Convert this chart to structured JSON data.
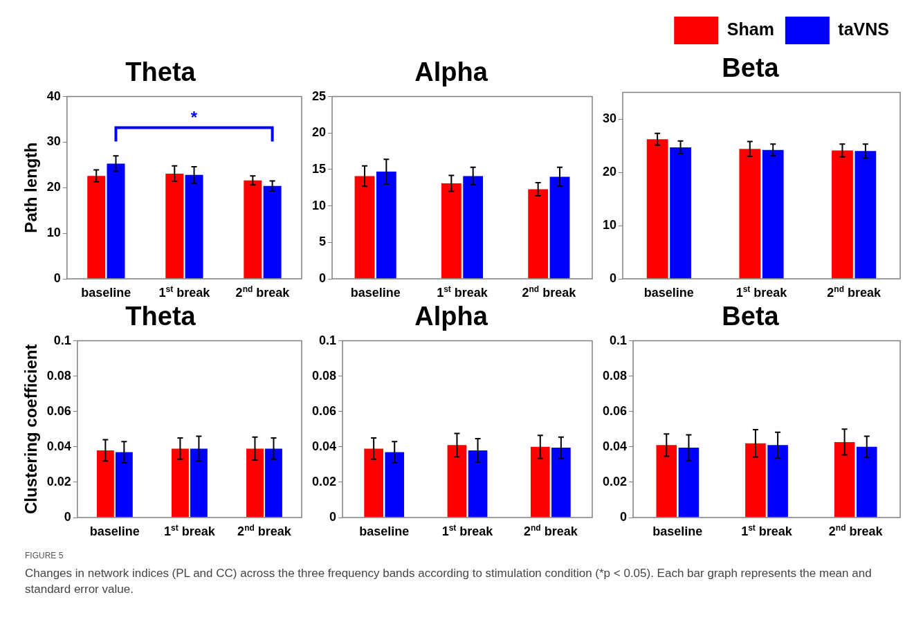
{
  "chart_data": [
    {
      "type": "bar",
      "title": "Theta",
      "ylabel": "Path length",
      "categories": [
        "baseline",
        "1$^{st}$ break",
        "2$^{nd}$ break"
      ],
      "ylim": [
        0,
        40
      ],
      "yticks": [
        0,
        10,
        20,
        30,
        40
      ],
      "grid": false,
      "series": [
        {
          "color": "#ff0000",
          "values": [
            22.6,
            23.1,
            21.6
          ],
          "errors": [
            1.3,
            1.7,
            1.0
          ]
        },
        {
          "color": "#0000ff",
          "values": [
            25.3,
            22.8,
            20.4
          ],
          "errors": [
            1.7,
            1.8,
            1.1
          ]
        }
      ],
      "annotations": [
        "*"
      ]
    },
    {
      "type": "bar",
      "title": "Alpha",
      "categories": [
        "baseline",
        "1$^{st}$ break",
        "2$^{nd}$ break"
      ],
      "ylim": [
        0,
        25
      ],
      "yticks": [
        0,
        5,
        10,
        15,
        20,
        25
      ],
      "grid": false,
      "series": [
        {
          "color": "#ff0000",
          "values": [
            14.1,
            13.1,
            12.3
          ],
          "errors": [
            1.4,
            1.1,
            0.9
          ]
        },
        {
          "color": "#0000ff",
          "values": [
            14.7,
            14.1,
            14.0
          ],
          "errors": [
            1.7,
            1.2,
            1.3
          ]
        }
      ]
    },
    {
      "type": "bar",
      "title": "Beta",
      "categories": [
        "baseline",
        "1$^{st}$ break",
        "2$^{nd}$ break"
      ],
      "ylim": [
        0,
        35
      ],
      "yticks": [
        0,
        10,
        20,
        30
      ],
      "grid": false,
      "legend": "top right",
      "series": [
        {
          "name": "Sham",
          "color": "#ff0000",
          "values": [
            26.2,
            24.4,
            24.1
          ],
          "errors": [
            1.1,
            1.4,
            1.2
          ]
        },
        {
          "name": "taVNS",
          "color": "#0000ff",
          "values": [
            24.7,
            24.2,
            24.0
          ],
          "errors": [
            1.2,
            1.1,
            1.3
          ]
        }
      ]
    },
    {
      "type": "bar",
      "title": "Theta",
      "ylabel": "Clustering coefficient",
      "categories": [
        "baseline",
        "1$^{st}$ break",
        "2$^{nd}$ break"
      ],
      "ylim": [
        0,
        0.1
      ],
      "yticks": [
        0,
        0.02,
        0.04,
        0.06,
        0.08,
        0.1
      ],
      "grid": false,
      "series": [
        {
          "color": "#ff0000",
          "values": [
            0.038,
            0.039,
            0.039
          ],
          "errors": [
            0.006,
            0.006,
            0.0065
          ]
        },
        {
          "color": "#0000ff",
          "values": [
            0.037,
            0.039,
            0.039
          ],
          "errors": [
            0.006,
            0.007,
            0.006
          ]
        }
      ]
    },
    {
      "type": "bar",
      "title": "Alpha",
      "categories": [
        "baseline",
        "1$^{st}$ break",
        "2$^{nd}$ break"
      ],
      "ylim": [
        0,
        0.1
      ],
      "yticks": [
        0,
        0.02,
        0.04,
        0.06,
        0.08,
        0.1
      ],
      "grid": false,
      "series": [
        {
          "color": "#ff0000",
          "values": [
            0.039,
            0.041,
            0.04
          ],
          "errors": [
            0.006,
            0.0066,
            0.0065
          ]
        },
        {
          "color": "#0000ff",
          "values": [
            0.037,
            0.038,
            0.0395
          ],
          "errors": [
            0.006,
            0.0066,
            0.006
          ]
        }
      ]
    },
    {
      "type": "bar",
      "title": "Beta",
      "categories": [
        "baseline",
        "1$^{st}$ break",
        "2$^{nd}$ break"
      ],
      "ylim": [
        0,
        0.1
      ],
      "yticks": [
        0,
        0.02,
        0.04,
        0.06,
        0.08,
        0.1
      ],
      "grid": false,
      "series": [
        {
          "color": "#ff0000",
          "values": [
            0.041,
            0.042,
            0.0427
          ],
          "errors": [
            0.0063,
            0.0077,
            0.0073
          ]
        },
        {
          "color": "#0000ff",
          "values": [
            0.0395,
            0.041,
            0.04
          ],
          "errors": [
            0.0073,
            0.0073,
            0.006
          ]
        }
      ],
      "annotations": [
        "FIGURE 5",
        "Changes in network indices (PL and CC) across the three frequency bands according to stimulation condition (*p < 0.05). Each bar graph represents the mean and standard error value."
      ]
    }
  ]
}
